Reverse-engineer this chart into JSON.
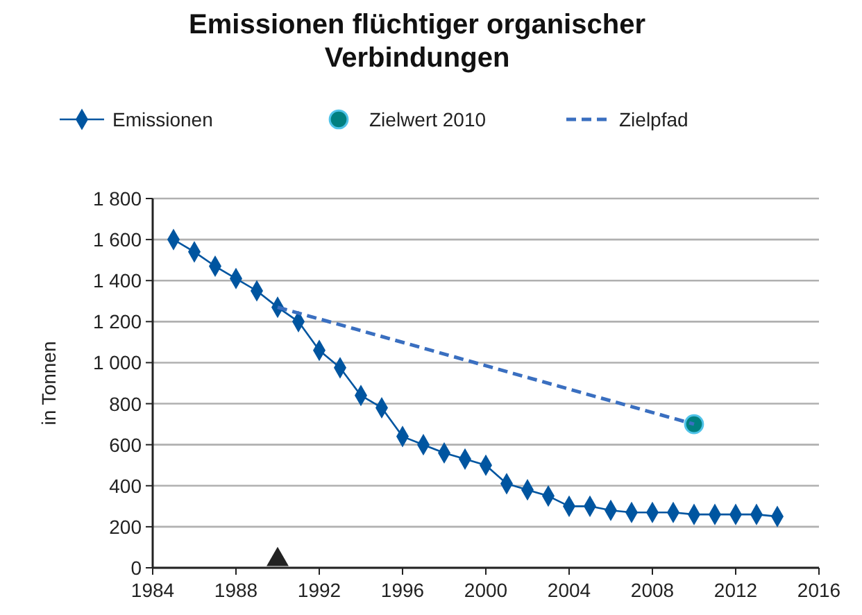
{
  "chart_data": {
    "type": "line",
    "title": "Emissionen flüchtiger organischer Verbindungen",
    "ylabel": "in Tonnen",
    "xlim": [
      1984,
      2016
    ],
    "xticks": [
      1984,
      1988,
      1992,
      1996,
      2000,
      2004,
      2008,
      2012,
      2016
    ],
    "ylim": [
      0,
      1800
    ],
    "yticks": [
      {
        "value": 0,
        "label": "0"
      },
      {
        "value": 200,
        "label": "200"
      },
      {
        "value": 400,
        "label": "400"
      },
      {
        "value": 600,
        "label": "600"
      },
      {
        "value": 800,
        "label": "800"
      },
      {
        "value": 1000,
        "label": "1 000"
      },
      {
        "value": 1200,
        "label": "1 200"
      },
      {
        "value": 1400,
        "label": "1 400"
      },
      {
        "value": 1600,
        "label": "1 600"
      },
      {
        "value": 1800,
        "label": "1 800"
      }
    ],
    "grid": "y",
    "legend": "top",
    "series": [
      {
        "name": "Emissionen",
        "color": "#0055a0",
        "marker": "diamond",
        "line_style": "solid",
        "x": [
          1985,
          1986,
          1987,
          1988,
          1989,
          1990,
          1991,
          1992,
          1993,
          1994,
          1995,
          1996,
          1997,
          1998,
          1999,
          2000,
          2001,
          2002,
          2003,
          2004,
          2005,
          2006,
          2007,
          2008,
          2009,
          2010,
          2011,
          2012,
          2013,
          2014
        ],
        "values": [
          1600,
          1540,
          1470,
          1410,
          1350,
          1270,
          1200,
          1060,
          975,
          840,
          780,
          640,
          600,
          560,
          530,
          500,
          410,
          380,
          350,
          300,
          300,
          280,
          270,
          270,
          270,
          260,
          260,
          260,
          260,
          250
        ]
      },
      {
        "name": "Zielwert 2010",
        "type": "scatter",
        "color": "#008080",
        "marker": "circle",
        "x": [
          2010
        ],
        "values": [
          700
        ]
      },
      {
        "name": "Zielpfad",
        "type": "line",
        "color": "#3a6fc0",
        "marker": "none",
        "line_style": "dashed",
        "x": [
          1990,
          2010
        ],
        "values": [
          1270,
          700
        ]
      },
      {
        "type": "scatter",
        "color": "#222222",
        "marker": "triangle",
        "x": [
          1990
        ],
        "values": [
          40
        ]
      }
    ]
  }
}
